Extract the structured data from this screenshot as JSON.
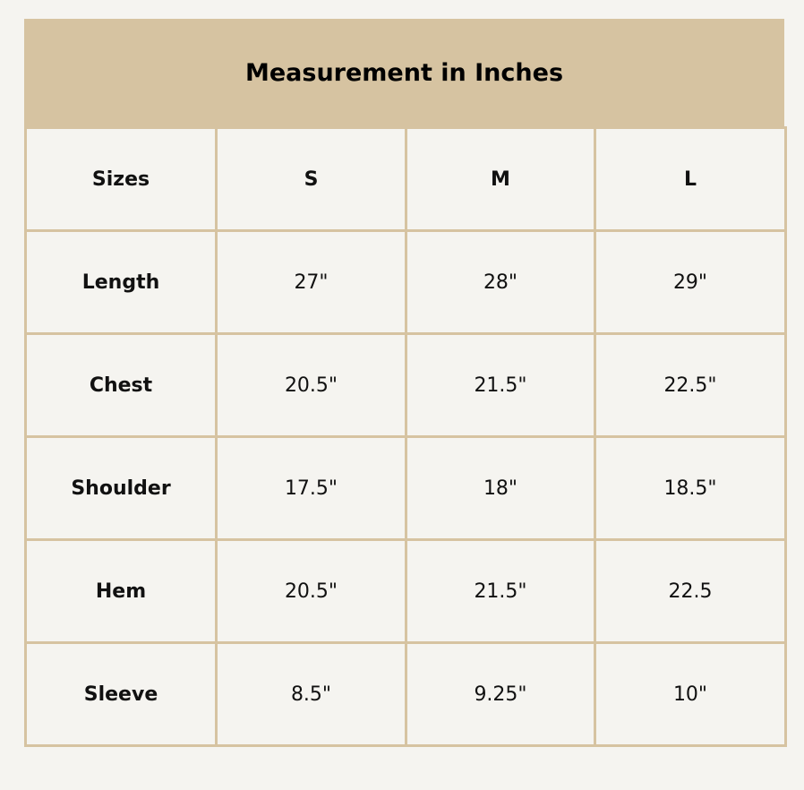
{
  "title": "Measurement in Inches",
  "colors": {
    "header_bg": "#d6c3a1",
    "border": "#d6c3a1",
    "background": "#f5f4f0"
  },
  "header_row": [
    "Sizes",
    "S",
    "M",
    "L"
  ],
  "rows": [
    [
      "Length",
      "27\"",
      "28\"",
      "29\""
    ],
    [
      "Chest",
      "20.5\"",
      "21.5\"",
      "22.5\""
    ],
    [
      "Shoulder",
      "17.5\"",
      "18\"",
      "18.5\""
    ],
    [
      "Hem",
      "20.5\"",
      "21.5\"",
      "22.5"
    ],
    [
      "Sleeve",
      "8.5\"",
      "9.25\"",
      "10\""
    ]
  ]
}
